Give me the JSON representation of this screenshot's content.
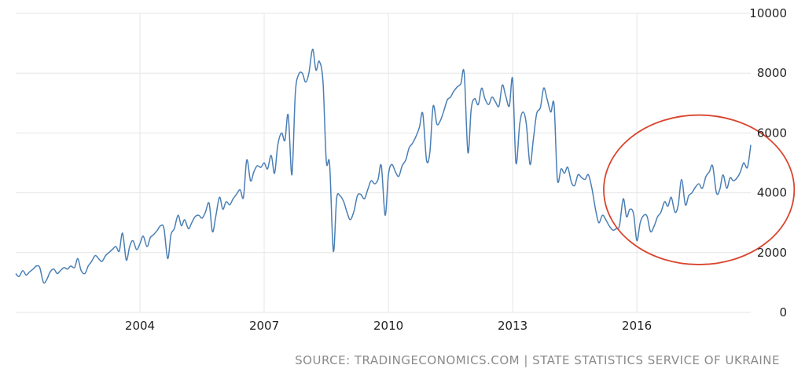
{
  "chart_data": {
    "type": "line",
    "title": "",
    "xlabel": "",
    "ylabel": "",
    "xlim": [
      2001.0,
      2018.75
    ],
    "ylim": [
      0,
      10000
    ],
    "grid": true,
    "y_axis_side": "right",
    "x_ticks": [
      {
        "value": 2004,
        "label": "2004"
      },
      {
        "value": 2007,
        "label": "2007"
      },
      {
        "value": 2010,
        "label": "2010"
      },
      {
        "value": 2013,
        "label": "2013"
      },
      {
        "value": 2016,
        "label": "2016"
      }
    ],
    "y_ticks": [
      {
        "value": 0,
        "label": "0"
      },
      {
        "value": 2000,
        "label": "2000"
      },
      {
        "value": 4000,
        "label": "4000"
      },
      {
        "value": 6000,
        "label": "6000"
      },
      {
        "value": 8000,
        "label": "8000"
      },
      {
        "value": 10000,
        "label": "10000"
      }
    ],
    "series": [
      {
        "color": "#4a7fb5",
        "x": [
          2001.0,
          2001.08,
          2001.17,
          2001.25,
          2001.33,
          2001.42,
          2001.5,
          2001.58,
          2001.67,
          2001.75,
          2001.83,
          2001.92,
          2002.0,
          2002.08,
          2002.17,
          2002.25,
          2002.33,
          2002.42,
          2002.5,
          2002.58,
          2002.67,
          2002.75,
          2002.83,
          2002.92,
          2003.0,
          2003.08,
          2003.17,
          2003.25,
          2003.33,
          2003.42,
          2003.5,
          2003.58,
          2003.67,
          2003.75,
          2003.83,
          2003.92,
          2004.0,
          2004.08,
          2004.17,
          2004.25,
          2004.33,
          2004.42,
          2004.5,
          2004.58,
          2004.67,
          2004.75,
          2004.83,
          2004.92,
          2005.0,
          2005.08,
          2005.17,
          2005.25,
          2005.33,
          2005.42,
          2005.5,
          2005.58,
          2005.67,
          2005.75,
          2005.83,
          2005.92,
          2006.0,
          2006.08,
          2006.17,
          2006.25,
          2006.33,
          2006.42,
          2006.5,
          2006.58,
          2006.67,
          2006.75,
          2006.83,
          2006.92,
          2007.0,
          2007.08,
          2007.17,
          2007.25,
          2007.33,
          2007.42,
          2007.5,
          2007.58,
          2007.67,
          2007.75,
          2007.83,
          2007.92,
          2008.0,
          2008.08,
          2008.17,
          2008.25,
          2008.33,
          2008.42,
          2008.5,
          2008.58,
          2008.67,
          2008.75,
          2008.83,
          2008.92,
          2009.0,
          2009.08,
          2009.17,
          2009.25,
          2009.33,
          2009.42,
          2009.5,
          2009.58,
          2009.67,
          2009.75,
          2009.83,
          2009.92,
          2010.0,
          2010.08,
          2010.17,
          2010.25,
          2010.33,
          2010.42,
          2010.5,
          2010.58,
          2010.67,
          2010.75,
          2010.83,
          2010.92,
          2011.0,
          2011.08,
          2011.17,
          2011.25,
          2011.33,
          2011.42,
          2011.5,
          2011.58,
          2011.67,
          2011.75,
          2011.83,
          2011.92,
          2012.0,
          2012.08,
          2012.17,
          2012.25,
          2012.33,
          2012.42,
          2012.5,
          2012.58,
          2012.67,
          2012.75,
          2012.83,
          2012.92,
          2013.0,
          2013.08,
          2013.17,
          2013.25,
          2013.33,
          2013.42,
          2013.5,
          2013.58,
          2013.67,
          2013.75,
          2013.83,
          2013.92,
          2014.0,
          2014.08,
          2014.17,
          2014.25,
          2014.33,
          2014.42,
          2014.5,
          2014.58,
          2014.67,
          2014.75,
          2014.83,
          2014.92,
          2015.0,
          2015.08,
          2015.17,
          2015.25,
          2015.33,
          2015.42,
          2015.5,
          2015.58,
          2015.67,
          2015.75,
          2015.83,
          2015.92,
          2016.0,
          2016.08,
          2016.17,
          2016.25,
          2016.33,
          2016.42,
          2016.5,
          2016.58,
          2016.67,
          2016.75,
          2016.83,
          2016.92,
          2017.0,
          2017.08,
          2017.17,
          2017.25,
          2017.33,
          2017.42,
          2017.5,
          2017.58,
          2017.67,
          2017.75,
          2017.83,
          2017.92,
          2018.0,
          2018.08,
          2018.17,
          2018.25,
          2018.33,
          2018.42,
          2018.5,
          2018.58,
          2018.67,
          2018.75
        ],
        "y": [
          1300,
          1200,
          1400,
          1250,
          1350,
          1450,
          1550,
          1500,
          1000,
          1100,
          1350,
          1450,
          1300,
          1400,
          1500,
          1450,
          1550,
          1500,
          1800,
          1400,
          1300,
          1550,
          1700,
          1900,
          1800,
          1700,
          1900,
          2000,
          2100,
          2200,
          2050,
          2650,
          1750,
          2200,
          2400,
          2100,
          2300,
          2550,
          2200,
          2500,
          2600,
          2750,
          2900,
          2800,
          1800,
          2600,
          2800,
          3250,
          2900,
          3100,
          2800,
          3000,
          3200,
          3250,
          3150,
          3350,
          3650,
          2700,
          3200,
          3850,
          3450,
          3700,
          3600,
          3800,
          3950,
          4100,
          3850,
          5100,
          4400,
          4700,
          4900,
          4850,
          5000,
          4800,
          5250,
          4650,
          5600,
          6000,
          5750,
          6600,
          4600,
          7300,
          7950,
          8000,
          7700,
          8000,
          8800,
          8100,
          8400,
          7700,
          5050,
          4950,
          2050,
          3800,
          3900,
          3700,
          3350,
          3100,
          3400,
          3900,
          3950,
          3800,
          4100,
          4400,
          4300,
          4450,
          4900,
          3250,
          4600,
          4950,
          4700,
          4550,
          4900,
          5100,
          5500,
          5650,
          5900,
          6200,
          6650,
          5100,
          5350,
          6900,
          6300,
          6400,
          6700,
          7100,
          7200,
          7400,
          7550,
          7650,
          8000,
          5350,
          6800,
          7150,
          6950,
          7500,
          7150,
          6950,
          7200,
          7050,
          6900,
          7600,
          7250,
          6900,
          7800,
          5000,
          6300,
          6700,
          6300,
          4950,
          5800,
          6650,
          6850,
          7500,
          7150,
          6700,
          6950,
          4450,
          4800,
          4650,
          4850,
          4350,
          4250,
          4600,
          4500,
          4450,
          4600,
          4100,
          3450,
          3000,
          3250,
          3100,
          2900,
          2750,
          2800,
          2900,
          3800,
          3200,
          3450,
          3300,
          2400,
          3000,
          3250,
          3200,
          2700,
          2900,
          3200,
          3350,
          3700,
          3550,
          3850,
          3350,
          3600,
          4450,
          3600,
          3900,
          4000,
          4200,
          4300,
          4150,
          4550,
          4700,
          4900,
          4000,
          4100,
          4600,
          4150,
          4500,
          4400,
          4500,
          4700,
          5000,
          4850,
          5600
        ]
      }
    ],
    "annotations": [
      {
        "type": "ellipse",
        "color": "#d9452e",
        "x_center": 2017.5,
        "y_center": 4100,
        "x_radius": 2.3,
        "y_radius": 2500
      }
    ]
  },
  "source_note": "SOURCE: TRADINGECONOMICS.COM | STATE STATISTICS SERVICE OF UKRAINE"
}
